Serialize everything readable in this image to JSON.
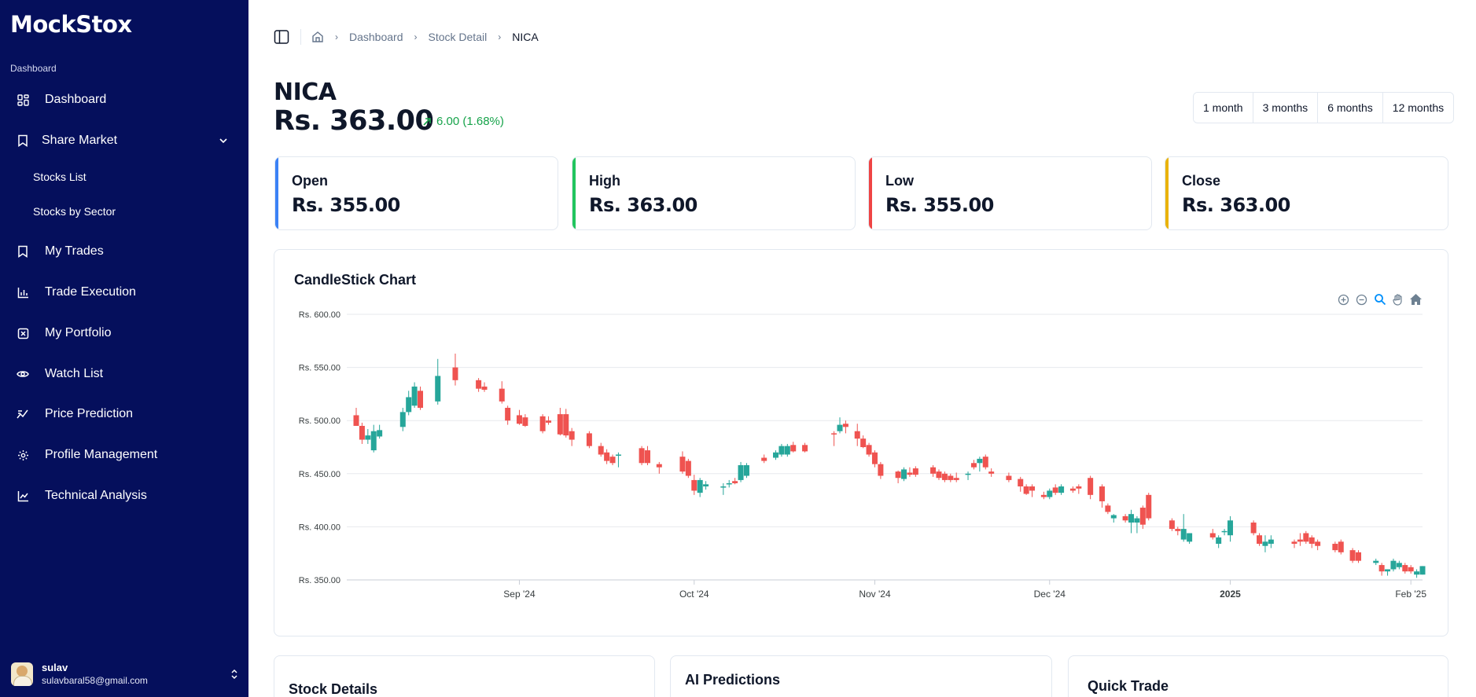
{
  "sidebar": {
    "brand": "MockStox",
    "section_label": "Dashboard",
    "items": [
      {
        "label": "Dashboard"
      },
      {
        "label": "Share Market"
      },
      {
        "label": "My Trades"
      },
      {
        "label": "Trade Execution"
      },
      {
        "label": "My Portfolio"
      },
      {
        "label": "Watch List"
      },
      {
        "label": "Price Prediction"
      },
      {
        "label": "Profile Management"
      },
      {
        "label": "Technical Analysis"
      }
    ],
    "sub_items": [
      {
        "label": "Stocks List"
      },
      {
        "label": "Stocks by Sector"
      }
    ],
    "user": {
      "name": "sulav",
      "email": "sulavbaral58@gmail.com"
    }
  },
  "breadcrumb": [
    "Dashboard",
    "Stock Detail",
    "NICA"
  ],
  "stock": {
    "symbol": "NICA",
    "price": "Rs. 363.00",
    "change": "6.00 (1.68%)"
  },
  "ranges": [
    "1 month",
    "3 months",
    "6 months",
    "12 months"
  ],
  "stats": [
    {
      "title": "Open",
      "value": "Rs. 355.00",
      "color": "#3b82f6"
    },
    {
      "title": "High",
      "value": "Rs. 363.00",
      "color": "#22c55e"
    },
    {
      "title": "Low",
      "value": "Rs. 355.00",
      "color": "#ef4444"
    },
    {
      "title": "Close",
      "value": "Rs. 363.00",
      "color": "#eab308"
    }
  ],
  "colors": {
    "up": "#26a69a",
    "down": "#ef5350",
    "accent": "#16a34a",
    "sidebar": "#050f5c"
  },
  "bottom_cards": [
    "Stock Details",
    "AI Predictions",
    "Quick Trade"
  ],
  "chart_data": {
    "type": "candlestick",
    "title": "CandleStick Chart",
    "ylim": [
      350,
      600
    ],
    "y_ticks": [
      "Rs. 600.00",
      "Rs. 550.00",
      "Rs. 500.00",
      "Rs. 450.00",
      "Rs. 400.00",
      "Rs. 350.00"
    ],
    "y_tick_values": [
      600,
      550,
      500,
      450,
      400,
      350
    ],
    "x_ticks": [
      "Sep '24",
      "Oct '24",
      "Nov '24",
      "Dec '24",
      "2025",
      "Feb '25"
    ],
    "x_tick_dates": [
      "2024-09-01",
      "2024-10-01",
      "2024-11-01",
      "2024-12-01",
      "2025-01-01",
      "2025-02-01"
    ],
    "date_range": [
      "2024-08-04",
      "2025-02-03"
    ],
    "candles": [
      {
        "d": "2024-08-04",
        "o": 505,
        "h": 512,
        "l": 495,
        "c": 495
      },
      {
        "d": "2024-08-05",
        "o": 495,
        "h": 498,
        "l": 478,
        "c": 482
      },
      {
        "d": "2024-08-06",
        "o": 482,
        "h": 492,
        "l": 478,
        "c": 486
      },
      {
        "d": "2024-08-07",
        "o": 472,
        "h": 496,
        "l": 470,
        "c": 490
      },
      {
        "d": "2024-08-08",
        "o": 485,
        "h": 496,
        "l": 483,
        "c": 491
      },
      {
        "d": "2024-08-12",
        "o": 494,
        "h": 512,
        "l": 490,
        "c": 508
      },
      {
        "d": "2024-08-13",
        "o": 508,
        "h": 528,
        "l": 505,
        "c": 522
      },
      {
        "d": "2024-08-14",
        "o": 514,
        "h": 536,
        "l": 512,
        "c": 532
      },
      {
        "d": "2024-08-15",
        "o": 528,
        "h": 532,
        "l": 510,
        "c": 512
      },
      {
        "d": "2024-08-18",
        "o": 518,
        "h": 558,
        "l": 515,
        "c": 542
      },
      {
        "d": "2024-08-21",
        "o": 550,
        "h": 563,
        "l": 533,
        "c": 538
      },
      {
        "d": "2024-08-25",
        "o": 538,
        "h": 540,
        "l": 527,
        "c": 530
      },
      {
        "d": "2024-08-26",
        "o": 532,
        "h": 536,
        "l": 527,
        "c": 529
      },
      {
        "d": "2024-08-29",
        "o": 530,
        "h": 537,
        "l": 516,
        "c": 518
      },
      {
        "d": "2024-08-30",
        "o": 512,
        "h": 514,
        "l": 496,
        "c": 500
      },
      {
        "d": "2024-09-01",
        "o": 505,
        "h": 510,
        "l": 496,
        "c": 497
      },
      {
        "d": "2024-09-02",
        "o": 503,
        "h": 506,
        "l": 494,
        "c": 495
      },
      {
        "d": "2024-09-05",
        "o": 504,
        "h": 506,
        "l": 488,
        "c": 490
      },
      {
        "d": "2024-09-06",
        "o": 500,
        "h": 504,
        "l": 496,
        "c": 498
      },
      {
        "d": "2024-09-08",
        "o": 506,
        "h": 512,
        "l": 486,
        "c": 487
      },
      {
        "d": "2024-09-09",
        "o": 506,
        "h": 511,
        "l": 484,
        "c": 486
      },
      {
        "d": "2024-09-10",
        "o": 490,
        "h": 493,
        "l": 476,
        "c": 482
      },
      {
        "d": "2024-09-13",
        "o": 488,
        "h": 490,
        "l": 474,
        "c": 476
      },
      {
        "d": "2024-09-15",
        "o": 476,
        "h": 479,
        "l": 466,
        "c": 468
      },
      {
        "d": "2024-09-16",
        "o": 470,
        "h": 473,
        "l": 459,
        "c": 462
      },
      {
        "d": "2024-09-17",
        "o": 466,
        "h": 468,
        "l": 458,
        "c": 460
      },
      {
        "d": "2024-09-18",
        "o": 467,
        "h": 470,
        "l": 456,
        "c": 468
      },
      {
        "d": "2024-09-22",
        "o": 474,
        "h": 476,
        "l": 458,
        "c": 460
      },
      {
        "d": "2024-09-23",
        "o": 472,
        "h": 476,
        "l": 458,
        "c": 460
      },
      {
        "d": "2024-09-25",
        "o": 459,
        "h": 461,
        "l": 450,
        "c": 456
      },
      {
        "d": "2024-09-29",
        "o": 466,
        "h": 471,
        "l": 450,
        "c": 452
      },
      {
        "d": "2024-09-30",
        "o": 462,
        "h": 464,
        "l": 446,
        "c": 448
      },
      {
        "d": "2024-10-01",
        "o": 444,
        "h": 449,
        "l": 430,
        "c": 434
      },
      {
        "d": "2024-10-02",
        "o": 432,
        "h": 446,
        "l": 428,
        "c": 444
      },
      {
        "d": "2024-10-03",
        "o": 438,
        "h": 443,
        "l": 435,
        "c": 440
      },
      {
        "d": "2024-10-06",
        "o": 438,
        "h": 441,
        "l": 430,
        "c": 438
      },
      {
        "d": "2024-10-07",
        "o": 440,
        "h": 444,
        "l": 437,
        "c": 441
      },
      {
        "d": "2024-10-08",
        "o": 443,
        "h": 446,
        "l": 440,
        "c": 441
      },
      {
        "d": "2024-10-09",
        "o": 444,
        "h": 461,
        "l": 442,
        "c": 458
      },
      {
        "d": "2024-10-10",
        "o": 448,
        "h": 460,
        "l": 446,
        "c": 458
      },
      {
        "d": "2024-10-13",
        "o": 465,
        "h": 468,
        "l": 460,
        "c": 462
      },
      {
        "d": "2024-10-15",
        "o": 465,
        "h": 472,
        "l": 463,
        "c": 470
      },
      {
        "d": "2024-10-16",
        "o": 468,
        "h": 478,
        "l": 466,
        "c": 476
      },
      {
        "d": "2024-10-17",
        "o": 468,
        "h": 478,
        "l": 466,
        "c": 476
      },
      {
        "d": "2024-10-18",
        "o": 477,
        "h": 480,
        "l": 470,
        "c": 471
      },
      {
        "d": "2024-10-20",
        "o": 477,
        "h": 479,
        "l": 470,
        "c": 471
      },
      {
        "d": "2024-10-25",
        "o": 488,
        "h": 490,
        "l": 476,
        "c": 487
      },
      {
        "d": "2024-10-26",
        "o": 490,
        "h": 503,
        "l": 488,
        "c": 496
      },
      {
        "d": "2024-10-27",
        "o": 497,
        "h": 500,
        "l": 488,
        "c": 494
      },
      {
        "d": "2024-10-29",
        "o": 490,
        "h": 497,
        "l": 476,
        "c": 483
      },
      {
        "d": "2024-10-30",
        "o": 483,
        "h": 486,
        "l": 474,
        "c": 475
      },
      {
        "d": "2024-10-31",
        "o": 477,
        "h": 479,
        "l": 466,
        "c": 468
      },
      {
        "d": "2024-11-01",
        "o": 470,
        "h": 472,
        "l": 456,
        "c": 459
      },
      {
        "d": "2024-11-02",
        "o": 459,
        "h": 461,
        "l": 445,
        "c": 448
      },
      {
        "d": "2024-11-05",
        "o": 452,
        "h": 453,
        "l": 441,
        "c": 446
      },
      {
        "d": "2024-11-06",
        "o": 445,
        "h": 456,
        "l": 443,
        "c": 454
      },
      {
        "d": "2024-11-07",
        "o": 451,
        "h": 456,
        "l": 447,
        "c": 449
      },
      {
        "d": "2024-11-08",
        "o": 455,
        "h": 457,
        "l": 447,
        "c": 449
      },
      {
        "d": "2024-11-11",
        "o": 456,
        "h": 458,
        "l": 447,
        "c": 450
      },
      {
        "d": "2024-11-12",
        "o": 452,
        "h": 454,
        "l": 444,
        "c": 446
      },
      {
        "d": "2024-11-13",
        "o": 450,
        "h": 452,
        "l": 442,
        "c": 444
      },
      {
        "d": "2024-11-14",
        "o": 448,
        "h": 450,
        "l": 442,
        "c": 444
      },
      {
        "d": "2024-11-15",
        "o": 446,
        "h": 451,
        "l": 442,
        "c": 444
      },
      {
        "d": "2024-11-17",
        "o": 450,
        "h": 452,
        "l": 444,
        "c": 450
      },
      {
        "d": "2024-11-18",
        "o": 460,
        "h": 463,
        "l": 454,
        "c": 456
      },
      {
        "d": "2024-11-19",
        "o": 460,
        "h": 466,
        "l": 452,
        "c": 464
      },
      {
        "d": "2024-11-20",
        "o": 466,
        "h": 468,
        "l": 454,
        "c": 456
      },
      {
        "d": "2024-11-21",
        "o": 452,
        "h": 455,
        "l": 447,
        "c": 450
      },
      {
        "d": "2024-11-24",
        "o": 448,
        "h": 451,
        "l": 442,
        "c": 444
      },
      {
        "d": "2024-11-26",
        "o": 445,
        "h": 447,
        "l": 433,
        "c": 438
      },
      {
        "d": "2024-11-27",
        "o": 438,
        "h": 440,
        "l": 430,
        "c": 431
      },
      {
        "d": "2024-11-28",
        "o": 438,
        "h": 440,
        "l": 428,
        "c": 434
      },
      {
        "d": "2024-11-30",
        "o": 430,
        "h": 433,
        "l": 426,
        "c": 428
      },
      {
        "d": "2024-12-01",
        "o": 428,
        "h": 436,
        "l": 426,
        "c": 434
      },
      {
        "d": "2024-12-02",
        "o": 437,
        "h": 440,
        "l": 430,
        "c": 432
      },
      {
        "d": "2024-12-03",
        "o": 432,
        "h": 440,
        "l": 430,
        "c": 438
      },
      {
        "d": "2024-12-05",
        "o": 436,
        "h": 438,
        "l": 432,
        "c": 434
      },
      {
        "d": "2024-12-06",
        "o": 438,
        "h": 440,
        "l": 431,
        "c": 436
      },
      {
        "d": "2024-12-08",
        "o": 446,
        "h": 448,
        "l": 426,
        "c": 430
      },
      {
        "d": "2024-12-10",
        "o": 438,
        "h": 440,
        "l": 418,
        "c": 424
      },
      {
        "d": "2024-12-11",
        "o": 420,
        "h": 422,
        "l": 412,
        "c": 414
      },
      {
        "d": "2024-12-12",
        "o": 408,
        "h": 412,
        "l": 404,
        "c": 411
      },
      {
        "d": "2024-12-14",
        "o": 410,
        "h": 412,
        "l": 404,
        "c": 406
      },
      {
        "d": "2024-12-15",
        "o": 404,
        "h": 416,
        "l": 394,
        "c": 412
      },
      {
        "d": "2024-12-16",
        "o": 404,
        "h": 410,
        "l": 394,
        "c": 408
      },
      {
        "d": "2024-12-17",
        "o": 418,
        "h": 420,
        "l": 398,
        "c": 402
      },
      {
        "d": "2024-12-18",
        "o": 430,
        "h": 432,
        "l": 406,
        "c": 408
      },
      {
        "d": "2024-12-22",
        "o": 406,
        "h": 408,
        "l": 396,
        "c": 398
      },
      {
        "d": "2024-12-23",
        "o": 398,
        "h": 400,
        "l": 392,
        "c": 396
      },
      {
        "d": "2024-12-24",
        "o": 388,
        "h": 412,
        "l": 386,
        "c": 398
      },
      {
        "d": "2024-12-25",
        "o": 386,
        "h": 394,
        "l": 384,
        "c": 394
      },
      {
        "d": "2024-12-29",
        "o": 394,
        "h": 398,
        "l": 388,
        "c": 390
      },
      {
        "d": "2024-12-30",
        "o": 384,
        "h": 392,
        "l": 380,
        "c": 390
      },
      {
        "d": "2024-12-31",
        "o": 396,
        "h": 398,
        "l": 392,
        "c": 396
      },
      {
        "d": "2025-01-01",
        "o": 392,
        "h": 410,
        "l": 386,
        "c": 406
      },
      {
        "d": "2025-01-05",
        "o": 404,
        "h": 406,
        "l": 392,
        "c": 394
      },
      {
        "d": "2025-01-06",
        "o": 392,
        "h": 394,
        "l": 382,
        "c": 384
      },
      {
        "d": "2025-01-07",
        "o": 382,
        "h": 392,
        "l": 376,
        "c": 386
      },
      {
        "d": "2025-01-08",
        "o": 384,
        "h": 392,
        "l": 380,
        "c": 388
      },
      {
        "d": "2025-01-12",
        "o": 386,
        "h": 388,
        "l": 380,
        "c": 384
      },
      {
        "d": "2025-01-13",
        "o": 388,
        "h": 394,
        "l": 382,
        "c": 386
      },
      {
        "d": "2025-01-14",
        "o": 394,
        "h": 396,
        "l": 384,
        "c": 386
      },
      {
        "d": "2025-01-15",
        "o": 390,
        "h": 392,
        "l": 380,
        "c": 384
      },
      {
        "d": "2025-01-16",
        "o": 386,
        "h": 388,
        "l": 378,
        "c": 382
      },
      {
        "d": "2025-01-19",
        "o": 384,
        "h": 386,
        "l": 376,
        "c": 378
      },
      {
        "d": "2025-01-20",
        "o": 386,
        "h": 388,
        "l": 374,
        "c": 376
      },
      {
        "d": "2025-01-22",
        "o": 378,
        "h": 380,
        "l": 366,
        "c": 368
      },
      {
        "d": "2025-01-23",
        "o": 376,
        "h": 378,
        "l": 366,
        "c": 368
      },
      {
        "d": "2025-01-26",
        "o": 366,
        "h": 370,
        "l": 364,
        "c": 368
      },
      {
        "d": "2025-01-27",
        "o": 364,
        "h": 366,
        "l": 354,
        "c": 358
      },
      {
        "d": "2025-01-28",
        "o": 358,
        "h": 360,
        "l": 354,
        "c": 360
      },
      {
        "d": "2025-01-29",
        "o": 360,
        "h": 370,
        "l": 358,
        "c": 368
      },
      {
        "d": "2025-01-30",
        "o": 362,
        "h": 368,
        "l": 360,
        "c": 366
      },
      {
        "d": "2025-01-31",
        "o": 364,
        "h": 366,
        "l": 356,
        "c": 358
      },
      {
        "d": "2025-02-01",
        "o": 362,
        "h": 364,
        "l": 356,
        "c": 358
      },
      {
        "d": "2025-02-02",
        "o": 355,
        "h": 360,
        "l": 352,
        "c": 358
      },
      {
        "d": "2025-02-03",
        "o": 355,
        "h": 363,
        "l": 355,
        "c": 363
      }
    ]
  }
}
